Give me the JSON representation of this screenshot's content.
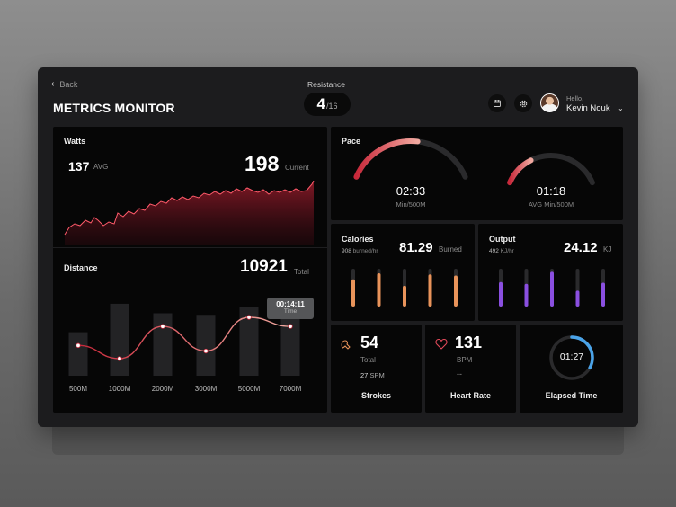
{
  "header": {
    "back_label": "Back",
    "title": "METRICS MONITOR",
    "resistance": {
      "label": "Resistance",
      "value": "4",
      "total": "/16"
    },
    "user": {
      "greeting": "Hello,",
      "name": "Kevin Nouk"
    }
  },
  "watts": {
    "label": "Watts",
    "avg_value": "137",
    "avg_label": "AVG",
    "current_value": "198",
    "current_label": "Current",
    "accent": "#c8283a"
  },
  "distance": {
    "label": "Distance",
    "total_value": "10921",
    "total_label": "Total",
    "tooltip": {
      "value": "00:14:11",
      "label": "Time"
    },
    "chart_data": {
      "type": "line",
      "categories": [
        "500M",
        "1000M",
        "2000M",
        "3000M",
        "5000M",
        "7000M"
      ],
      "values": [
        0.44,
        0.18,
        0.82,
        0.33,
        1.0,
        0.82
      ],
      "bars": [
        0.55,
        0.91,
        0.79,
        0.77,
        0.87,
        0.83
      ]
    }
  },
  "pace": {
    "label": "Pace",
    "gauges": [
      {
        "value": "02:33",
        "sublabel": "Min/500M",
        "progress": 0.55,
        "color": "#d93a4a"
      },
      {
        "value": "01:18",
        "sublabel": "AVG Min/500M",
        "progress": 0.3,
        "color": "#d93a4a"
      }
    ]
  },
  "calories": {
    "label": "Calories",
    "rate": "908",
    "rate_unit": "burned/hr",
    "value": "81.29",
    "unit": "Burned",
    "color": "#e8935a",
    "bars": [
      0.72,
      0.88,
      0.55,
      0.85,
      0.82
    ]
  },
  "output": {
    "label": "Output",
    "rate": "492",
    "rate_unit": "KJ/hr",
    "value": "24.12",
    "unit": "KJ",
    "color": "#8a4fe0",
    "bars": [
      0.65,
      0.6,
      0.92,
      0.42,
      0.63
    ]
  },
  "strokes": {
    "value": "54",
    "sub": "Total",
    "spm_value": "27",
    "spm_label": "SPM",
    "label": "Strokes",
    "icon": "rowing-icon"
  },
  "heart": {
    "value": "131",
    "sub": "BPM",
    "placeholder": "--",
    "label": "Heart Rate",
    "icon": "heart-icon"
  },
  "elapsed": {
    "value": "01:27",
    "label": "Elapsed Time",
    "progress": 0.33,
    "color": "#4aa3e8"
  }
}
